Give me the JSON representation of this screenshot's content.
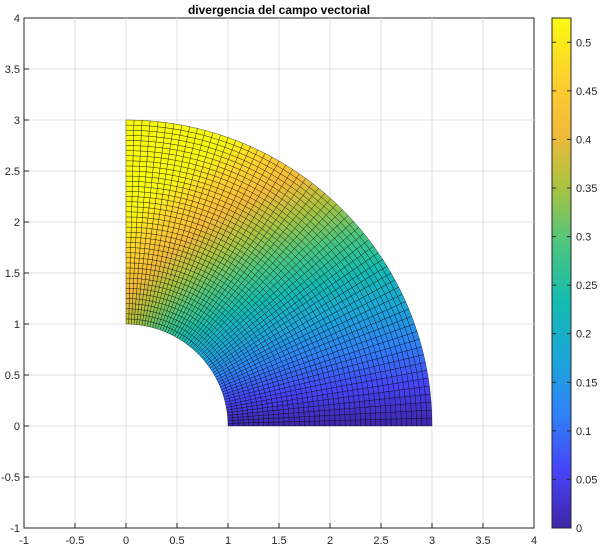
{
  "chart_data": {
    "type": "heatmap",
    "title": "divergencia del campo vectorial",
    "xlabel": "",
    "ylabel": "",
    "xlim": [
      -1,
      4
    ],
    "ylim": [
      -1,
      4
    ],
    "x_ticks": [
      "-1",
      "-0.5",
      "0",
      "0.5",
      "1",
      "1.5",
      "2",
      "2.5",
      "3",
      "3.5",
      "4"
    ],
    "y_ticks": [
      "-1",
      "-0.5",
      "0",
      "0.5",
      "1",
      "1.5",
      "2",
      "2.5",
      "3",
      "3.5",
      "4"
    ],
    "grid": true,
    "surface": {
      "shape": "annular sector (polar mesh)",
      "r_range": [
        1,
        3
      ],
      "theta_range_deg": [
        0,
        90
      ],
      "radial_divisions": 40,
      "angular_divisions": 60,
      "value_function": "theta_fraction * (0.22 + 0.15 * r)",
      "edge_color": "#000000"
    },
    "colorbar": {
      "position": "right",
      "range": [
        0,
        0.525
      ],
      "ticks": [
        "0",
        "0.05",
        "0.1",
        "0.15",
        "0.2",
        "0.25",
        "0.3",
        "0.35",
        "0.4",
        "0.45",
        "0.5"
      ],
      "colormap": "parula",
      "colormap_stops": [
        "#3e26a8",
        "#4743f8",
        "#2f81f7",
        "#1ba7d8",
        "#13bbb0",
        "#4bc67f",
        "#a8c341",
        "#f4ba3a",
        "#fdd32d",
        "#f9fb0e"
      ]
    }
  }
}
